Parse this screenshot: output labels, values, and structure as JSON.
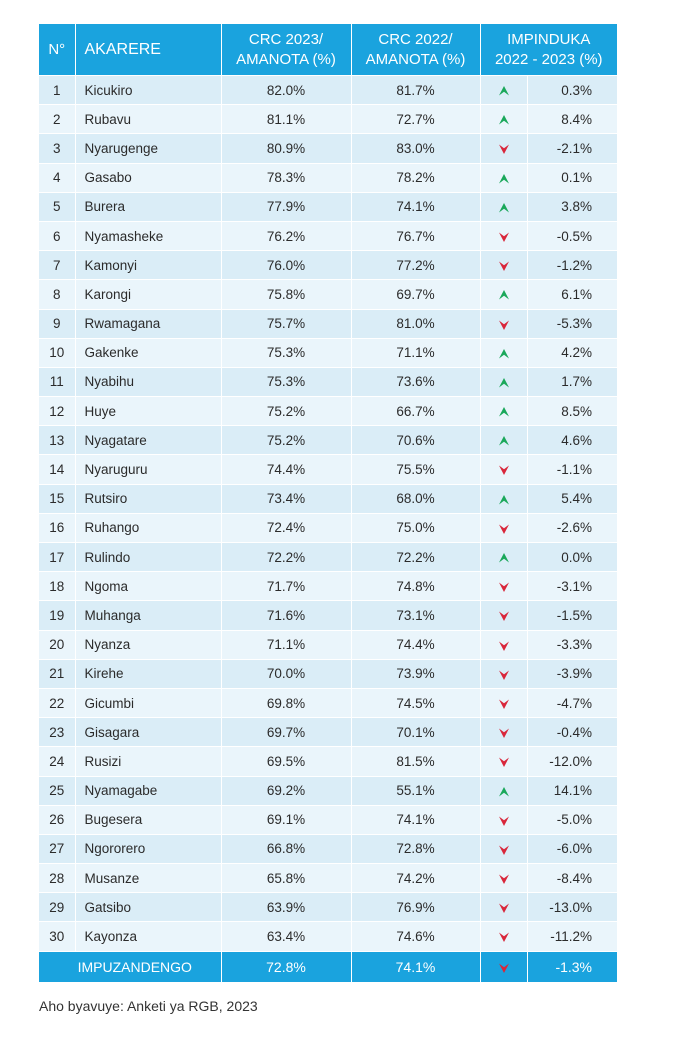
{
  "header": {
    "no": "N°",
    "district": "AKARERE",
    "crc2023_line1": "CRC 2023/",
    "crc2023_line2": "AMANOTA (%)",
    "crc2022_line1": "CRC 2022/",
    "crc2022_line2": "AMANOTA (%)",
    "change_line1": "IMPINDUKA",
    "change_line2": "2022 - 2023 (%)"
  },
  "colors": {
    "up": "#1aa85a",
    "down": "#d9263a",
    "header_bg": "#1aa3de"
  },
  "rows": [
    {
      "no": "1",
      "district": "Kicukiro",
      "crc2023": "82.0%",
      "crc2022": "81.7%",
      "trend": "up",
      "change": "0.3%"
    },
    {
      "no": "2",
      "district": "Rubavu",
      "crc2023": "81.1%",
      "crc2022": "72.7%",
      "trend": "up",
      "change": "8.4%"
    },
    {
      "no": "3",
      "district": "Nyarugenge",
      "crc2023": "80.9%",
      "crc2022": "83.0%",
      "trend": "down",
      "change": "-2.1%"
    },
    {
      "no": "4",
      "district": "Gasabo",
      "crc2023": "78.3%",
      "crc2022": "78.2%",
      "trend": "up",
      "change": "0.1%"
    },
    {
      "no": "5",
      "district": "Burera",
      "crc2023": "77.9%",
      "crc2022": "74.1%",
      "trend": "up",
      "change": "3.8%"
    },
    {
      "no": "6",
      "district": "Nyamasheke",
      "crc2023": "76.2%",
      "crc2022": "76.7%",
      "trend": "down",
      "change": "-0.5%"
    },
    {
      "no": "7",
      "district": "Kamonyi",
      "crc2023": "76.0%",
      "crc2022": "77.2%",
      "trend": "down",
      "change": "-1.2%"
    },
    {
      "no": "8",
      "district": "Karongi",
      "crc2023": "75.8%",
      "crc2022": "69.7%",
      "trend": "up",
      "change": "6.1%"
    },
    {
      "no": "9",
      "district": "Rwamagana",
      "crc2023": "75.7%",
      "crc2022": "81.0%",
      "trend": "down",
      "change": "-5.3%"
    },
    {
      "no": "10",
      "district": "Gakenke",
      "crc2023": "75.3%",
      "crc2022": "71.1%",
      "trend": "up",
      "change": "4.2%"
    },
    {
      "no": "11",
      "district": "Nyabihu",
      "crc2023": "75.3%",
      "crc2022": "73.6%",
      "trend": "up",
      "change": "1.7%"
    },
    {
      "no": "12",
      "district": "Huye",
      "crc2023": "75.2%",
      "crc2022": "66.7%",
      "trend": "up",
      "change": "8.5%"
    },
    {
      "no": "13",
      "district": "Nyagatare",
      "crc2023": "75.2%",
      "crc2022": "70.6%",
      "trend": "up",
      "change": "4.6%"
    },
    {
      "no": "14",
      "district": "Nyaruguru",
      "crc2023": "74.4%",
      "crc2022": "75.5%",
      "trend": "down",
      "change": "-1.1%"
    },
    {
      "no": "15",
      "district": "Rutsiro",
      "crc2023": "73.4%",
      "crc2022": "68.0%",
      "trend": "up",
      "change": "5.4%"
    },
    {
      "no": "16",
      "district": "Ruhango",
      "crc2023": "72.4%",
      "crc2022": "75.0%",
      "trend": "down",
      "change": "-2.6%"
    },
    {
      "no": "17",
      "district": "Rulindo",
      "crc2023": "72.2%",
      "crc2022": "72.2%",
      "trend": "up",
      "change": "0.0%"
    },
    {
      "no": "18",
      "district": "Ngoma",
      "crc2023": "71.7%",
      "crc2022": "74.8%",
      "trend": "down",
      "change": "-3.1%"
    },
    {
      "no": "19",
      "district": "Muhanga",
      "crc2023": "71.6%",
      "crc2022": "73.1%",
      "trend": "down",
      "change": "-1.5%"
    },
    {
      "no": "20",
      "district": "Nyanza",
      "crc2023": "71.1%",
      "crc2022": "74.4%",
      "trend": "down",
      "change": "-3.3%"
    },
    {
      "no": "21",
      "district": "Kirehe",
      "crc2023": "70.0%",
      "crc2022": "73.9%",
      "trend": "down",
      "change": "-3.9%"
    },
    {
      "no": "22",
      "district": "Gicumbi",
      "crc2023": "69.8%",
      "crc2022": "74.5%",
      "trend": "down",
      "change": "-4.7%"
    },
    {
      "no": "23",
      "district": "Gisagara",
      "crc2023": "69.7%",
      "crc2022": "70.1%",
      "trend": "down",
      "change": "-0.4%"
    },
    {
      "no": "24",
      "district": "Rusizi",
      "crc2023": "69.5%",
      "crc2022": "81.5%",
      "trend": "down",
      "change": "-12.0%"
    },
    {
      "no": "25",
      "district": "Nyamagabe",
      "crc2023": "69.2%",
      "crc2022": "55.1%",
      "trend": "up",
      "change": "14.1%"
    },
    {
      "no": "26",
      "district": "Bugesera",
      "crc2023": "69.1%",
      "crc2022": "74.1%",
      "trend": "down",
      "change": "-5.0%"
    },
    {
      "no": "27",
      "district": "Ngororero",
      "crc2023": "66.8%",
      "crc2022": "72.8%",
      "trend": "down",
      "change": "-6.0%"
    },
    {
      "no": "28",
      "district": "Musanze",
      "crc2023": "65.8%",
      "crc2022": "74.2%",
      "trend": "down",
      "change": "-8.4%"
    },
    {
      "no": "29",
      "district": "Gatsibo",
      "crc2023": "63.9%",
      "crc2022": "76.9%",
      "trend": "down",
      "change": "-13.0%"
    },
    {
      "no": "30",
      "district": "Kayonza",
      "crc2023": "63.4%",
      "crc2022": "74.6%",
      "trend": "down",
      "change": "-11.2%"
    }
  ],
  "footer": {
    "label": "IMPUZANDENGO",
    "crc2023": "72.8%",
    "crc2022": "74.1%",
    "trend": "down",
    "change": "-1.3%"
  },
  "source": "Aho byavuye: Anketi ya RGB, 2023"
}
